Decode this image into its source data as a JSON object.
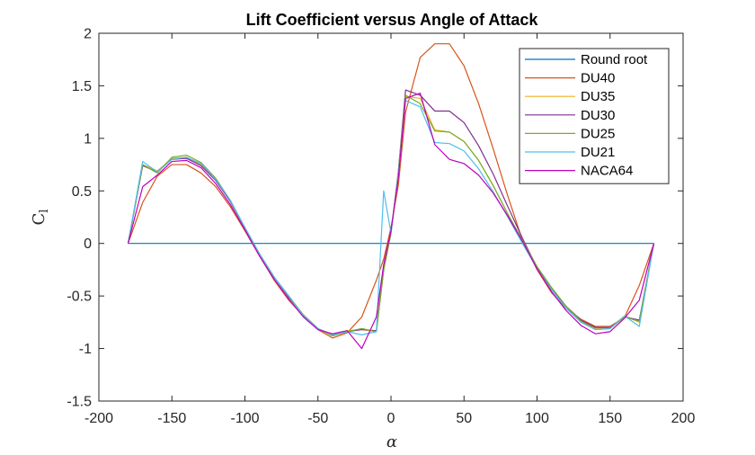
{
  "chart_data": {
    "type": "line",
    "title": "Lift Coefficient versus Angle of Attack",
    "xlabel": "α",
    "ylabel": "C",
    "ylabel_sub": "l",
    "xlim": [
      -200,
      200
    ],
    "ylim": [
      -1.5,
      2
    ],
    "xticks": [
      -200,
      -150,
      -100,
      -50,
      0,
      50,
      100,
      150,
      200
    ],
    "yticks": [
      -1.5,
      -1,
      -0.5,
      0,
      0.5,
      1,
      1.5,
      2
    ],
    "grid": false,
    "legend_position": "top-right",
    "series": [
      {
        "name": "Round root",
        "color": "#0072BD",
        "points": [
          [
            -180,
            0
          ],
          [
            180,
            0
          ]
        ]
      },
      {
        "name": "DU40",
        "color": "#D95319",
        "points": [
          [
            -180,
            0
          ],
          [
            -170,
            0.39
          ],
          [
            -160,
            0.64
          ],
          [
            -150,
            0.75
          ],
          [
            -140,
            0.75
          ],
          [
            -130,
            0.67
          ],
          [
            -120,
            0.54
          ],
          [
            -110,
            0.35
          ],
          [
            -100,
            0.12
          ],
          [
            -90,
            -0.12
          ],
          [
            -80,
            -0.35
          ],
          [
            -70,
            -0.54
          ],
          [
            -60,
            -0.69
          ],
          [
            -50,
            -0.82
          ],
          [
            -40,
            -0.9
          ],
          [
            -30,
            -0.85
          ],
          [
            -20,
            -0.7
          ],
          [
            -10,
            -0.35
          ],
          [
            -5,
            -0.15
          ],
          [
            0,
            0.15
          ],
          [
            5,
            0.55
          ],
          [
            10,
            1.25
          ],
          [
            20,
            1.77
          ],
          [
            30,
            1.9
          ],
          [
            40,
            1.9
          ],
          [
            50,
            1.69
          ],
          [
            60,
            1.33
          ],
          [
            70,
            0.9
          ],
          [
            80,
            0.45
          ],
          [
            90,
            0.03
          ],
          [
            100,
            -0.25
          ],
          [
            110,
            -0.47
          ],
          [
            120,
            -0.62
          ],
          [
            130,
            -0.72
          ],
          [
            140,
            -0.79
          ],
          [
            150,
            -0.79
          ],
          [
            160,
            -0.7
          ],
          [
            170,
            -0.4
          ],
          [
            180,
            0
          ]
        ]
      },
      {
        "name": "DU35",
        "color": "#EDB120",
        "points": [
          [
            -180,
            0
          ],
          [
            -170,
            0.75
          ],
          [
            -160,
            0.69
          ],
          [
            -150,
            0.81
          ],
          [
            -140,
            0.82
          ],
          [
            -130,
            0.75
          ],
          [
            -120,
            0.61
          ],
          [
            -110,
            0.4
          ],
          [
            -100,
            0.14
          ],
          [
            -90,
            -0.1
          ],
          [
            -80,
            -0.32
          ],
          [
            -70,
            -0.51
          ],
          [
            -60,
            -0.69
          ],
          [
            -50,
            -0.81
          ],
          [
            -40,
            -0.88
          ],
          [
            -30,
            -0.83
          ],
          [
            -20,
            -0.82
          ],
          [
            -10,
            -0.84
          ],
          [
            -5,
            -0.25
          ],
          [
            0,
            0.1
          ],
          [
            5,
            0.62
          ],
          [
            10,
            1.4
          ],
          [
            20,
            1.38
          ],
          [
            30,
            1.08
          ],
          [
            40,
            1.06
          ],
          [
            50,
            0.97
          ],
          [
            60,
            0.79
          ],
          [
            70,
            0.55
          ],
          [
            80,
            0.28
          ],
          [
            90,
            0.02
          ],
          [
            100,
            -0.23
          ],
          [
            110,
            -0.43
          ],
          [
            120,
            -0.6
          ],
          [
            130,
            -0.73
          ],
          [
            140,
            -0.81
          ],
          [
            150,
            -0.8
          ],
          [
            160,
            -0.69
          ],
          [
            170,
            -0.75
          ],
          [
            180,
            0
          ]
        ]
      },
      {
        "name": "DU30",
        "color": "#7E2F8E",
        "points": [
          [
            -180,
            0
          ],
          [
            -170,
            0.74
          ],
          [
            -160,
            0.68
          ],
          [
            -150,
            0.8
          ],
          [
            -140,
            0.81
          ],
          [
            -130,
            0.74
          ],
          [
            -120,
            0.6
          ],
          [
            -110,
            0.4
          ],
          [
            -100,
            0.15
          ],
          [
            -90,
            -0.1
          ],
          [
            -80,
            -0.32
          ],
          [
            -70,
            -0.51
          ],
          [
            -60,
            -0.68
          ],
          [
            -50,
            -0.81
          ],
          [
            -40,
            -0.87
          ],
          [
            -30,
            -0.84
          ],
          [
            -20,
            -0.82
          ],
          [
            -10,
            -0.83
          ],
          [
            -5,
            -0.25
          ],
          [
            0,
            0.1
          ],
          [
            5,
            0.68
          ],
          [
            10,
            1.46
          ],
          [
            20,
            1.41
          ],
          [
            30,
            1.26
          ],
          [
            40,
            1.26
          ],
          [
            50,
            1.15
          ],
          [
            60,
            0.93
          ],
          [
            70,
            0.66
          ],
          [
            80,
            0.35
          ],
          [
            90,
            0.05
          ],
          [
            100,
            -0.23
          ],
          [
            110,
            -0.44
          ],
          [
            120,
            -0.6
          ],
          [
            130,
            -0.73
          ],
          [
            140,
            -0.8
          ],
          [
            150,
            -0.8
          ],
          [
            160,
            -0.7
          ],
          [
            170,
            -0.73
          ],
          [
            180,
            0
          ]
        ]
      },
      {
        "name": "DU25",
        "color": "#77AC30",
        "points": [
          [
            -180,
            0
          ],
          [
            -170,
            0.75
          ],
          [
            -160,
            0.67
          ],
          [
            -150,
            0.82
          ],
          [
            -140,
            0.84
          ],
          [
            -130,
            0.77
          ],
          [
            -120,
            0.62
          ],
          [
            -110,
            0.41
          ],
          [
            -100,
            0.15
          ],
          [
            -90,
            -0.1
          ],
          [
            -80,
            -0.32
          ],
          [
            -70,
            -0.5
          ],
          [
            -60,
            -0.68
          ],
          [
            -50,
            -0.81
          ],
          [
            -40,
            -0.88
          ],
          [
            -30,
            -0.84
          ],
          [
            -20,
            -0.81
          ],
          [
            -10,
            -0.84
          ],
          [
            -5,
            -0.25
          ],
          [
            0,
            0.1
          ],
          [
            5,
            0.68
          ],
          [
            10,
            1.41
          ],
          [
            20,
            1.33
          ],
          [
            30,
            1.07
          ],
          [
            40,
            1.06
          ],
          [
            50,
            0.97
          ],
          [
            60,
            0.79
          ],
          [
            70,
            0.55
          ],
          [
            80,
            0.28
          ],
          [
            90,
            0.03
          ],
          [
            100,
            -0.22
          ],
          [
            110,
            -0.42
          ],
          [
            120,
            -0.6
          ],
          [
            130,
            -0.74
          ],
          [
            140,
            -0.82
          ],
          [
            150,
            -0.81
          ],
          [
            160,
            -0.7
          ],
          [
            170,
            -0.74
          ],
          [
            180,
            0
          ]
        ]
      },
      {
        "name": "DU21",
        "color": "#4DBEEE",
        "points": [
          [
            -180,
            0
          ],
          [
            -170,
            0.78
          ],
          [
            -160,
            0.68
          ],
          [
            -150,
            0.8
          ],
          [
            -140,
            0.82
          ],
          [
            -130,
            0.76
          ],
          [
            -120,
            0.61
          ],
          [
            -110,
            0.41
          ],
          [
            -100,
            0.15
          ],
          [
            -90,
            -0.1
          ],
          [
            -80,
            -0.32
          ],
          [
            -70,
            -0.5
          ],
          [
            -60,
            -0.69
          ],
          [
            -50,
            -0.81
          ],
          [
            -40,
            -0.87
          ],
          [
            -30,
            -0.84
          ],
          [
            -20,
            -0.87
          ],
          [
            -10,
            -0.84
          ],
          [
            -5,
            0.5
          ],
          [
            0,
            0.1
          ],
          [
            5,
            0.66
          ],
          [
            10,
            1.36
          ],
          [
            20,
            1.3
          ],
          [
            30,
            0.96
          ],
          [
            40,
            0.95
          ],
          [
            50,
            0.88
          ],
          [
            60,
            0.71
          ],
          [
            70,
            0.49
          ],
          [
            80,
            0.25
          ],
          [
            90,
            0.0
          ],
          [
            100,
            -0.24
          ],
          [
            110,
            -0.44
          ],
          [
            120,
            -0.62
          ],
          [
            130,
            -0.75
          ],
          [
            140,
            -0.82
          ],
          [
            150,
            -0.81
          ],
          [
            160,
            -0.69
          ],
          [
            170,
            -0.79
          ],
          [
            180,
            0
          ]
        ]
      },
      {
        "name": "NACA64",
        "color": "#BE00BE",
        "points": [
          [
            -180,
            0
          ],
          [
            -170,
            0.54
          ],
          [
            -160,
            0.65
          ],
          [
            -150,
            0.78
          ],
          [
            -140,
            0.79
          ],
          [
            -130,
            0.72
          ],
          [
            -120,
            0.57
          ],
          [
            -110,
            0.37
          ],
          [
            -100,
            0.13
          ],
          [
            -90,
            -0.12
          ],
          [
            -80,
            -0.34
          ],
          [
            -70,
            -0.53
          ],
          [
            -60,
            -0.7
          ],
          [
            -50,
            -0.82
          ],
          [
            -40,
            -0.86
          ],
          [
            -30,
            -0.83
          ],
          [
            -20,
            -1.0
          ],
          [
            -10,
            -0.7
          ],
          [
            -5,
            -0.2
          ],
          [
            0,
            0.12
          ],
          [
            5,
            0.62
          ],
          [
            10,
            1.38
          ],
          [
            20,
            1.43
          ],
          [
            30,
            0.94
          ],
          [
            40,
            0.8
          ],
          [
            50,
            0.76
          ],
          [
            60,
            0.65
          ],
          [
            70,
            0.48
          ],
          [
            80,
            0.26
          ],
          [
            90,
            0.02
          ],
          [
            100,
            -0.24
          ],
          [
            110,
            -0.46
          ],
          [
            120,
            -0.64
          ],
          [
            130,
            -0.78
          ],
          [
            140,
            -0.86
          ],
          [
            150,
            -0.84
          ],
          [
            160,
            -0.71
          ],
          [
            170,
            -0.54
          ],
          [
            180,
            0
          ]
        ]
      }
    ]
  }
}
